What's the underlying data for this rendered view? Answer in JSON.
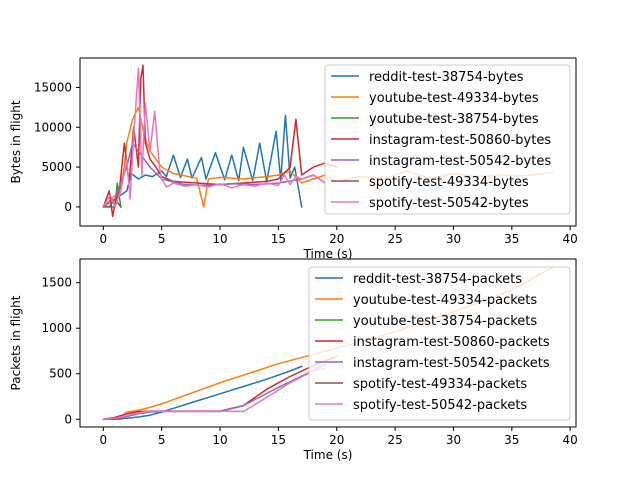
{
  "chart_data": [
    {
      "type": "line",
      "title": "",
      "xlabel": "Time (s)",
      "ylabel": "Bytes in flight",
      "xlim": [
        -2,
        40.5
      ],
      "ylim": [
        -2400,
        18700
      ],
      "xticks": [
        0,
        5,
        10,
        15,
        20,
        25,
        30,
        35,
        40
      ],
      "yticks": [
        0,
        5000,
        10000,
        15000
      ],
      "grid": false,
      "legend_position": "upper right",
      "series": [
        {
          "name": "reddit-test-38754-bytes",
          "color": "#1f77b4",
          "x": [
            0,
            2.0,
            2.4,
            3.0,
            3.6,
            4.2,
            5.0,
            5.4,
            6.0,
            6.6,
            7.2,
            7.6,
            8.4,
            8.8,
            9.6,
            10.4,
            11.0,
            11.6,
            12.0,
            12.8,
            13.4,
            14.0,
            14.8,
            15.2,
            15.6,
            16.0,
            16.4,
            17.0
          ],
          "y": [
            0,
            2000,
            4200,
            3500,
            4000,
            3800,
            4500,
            3800,
            6500,
            3700,
            6000,
            3600,
            6200,
            3500,
            6800,
            3400,
            6500,
            3300,
            7500,
            3300,
            8000,
            3200,
            9500,
            3400,
            11500,
            3600,
            5000,
            0
          ]
        },
        {
          "name": "youtube-test-49334-bytes",
          "color": "#ff7f0e",
          "x": [
            0,
            1.4,
            1.8,
            2.0,
            2.5,
            3.0,
            3.5,
            4.0,
            4.5,
            5.0,
            6.0,
            8.0,
            8.6,
            9.0,
            10.0,
            12.0,
            14.0,
            15.0,
            16.0,
            17.0,
            18.0,
            19.0,
            20.0,
            22.0,
            24.0,
            26.0,
            28.0,
            30.0,
            32.0,
            34.0,
            36.0,
            38.5
          ],
          "y": [
            0,
            2000,
            5000,
            8000,
            11000,
            12500,
            9000,
            7000,
            6000,
            5000,
            4200,
            3600,
            0,
            3500,
            3700,
            3500,
            3800,
            4000,
            4500,
            3000,
            3500,
            4000,
            3200,
            3800,
            3500,
            4500,
            3600,
            4200,
            3800,
            4000,
            3900,
            4300
          ]
        },
        {
          "name": "youtube-test-38754-bytes",
          "color": "#2ca02c",
          "x": [
            0,
            1.0,
            1.2,
            1.5
          ],
          "y": [
            0,
            0,
            3000,
            0
          ]
        },
        {
          "name": "instagram-test-50860-bytes",
          "color": "#d62728",
          "x": [
            0,
            0.5,
            0.8,
            1.0,
            1.4,
            1.8,
            2.2,
            2.6,
            3.0,
            3.2,
            3.4,
            3.6,
            4.0,
            4.5,
            5.0,
            6.0,
            8.0,
            10.0,
            12.0,
            14.0,
            15.0,
            16.0,
            16.5,
            17.0,
            18.0,
            19.0,
            20.0
          ],
          "y": [
            0,
            2000,
            -1200,
            500,
            2500,
            8000,
            3000,
            10000,
            5000,
            16000,
            17800,
            8000,
            6000,
            5000,
            3800,
            3200,
            3000,
            2800,
            3000,
            3200,
            3500,
            5000,
            11000,
            4000,
            5000,
            5500,
            5000
          ]
        },
        {
          "name": "instagram-test-50542-bytes",
          "color": "#9467bd",
          "x": [
            0,
            1.0,
            1.5,
            2.0,
            2.5,
            3.0,
            4.0,
            5.0,
            7.0,
            9.0,
            11.0,
            13.0,
            15.0,
            17.0,
            18.0,
            19.0
          ],
          "y": [
            0,
            1000,
            3000,
            5000,
            8000,
            7000,
            5000,
            3500,
            2800,
            2700,
            2900,
            2800,
            3000,
            3500,
            4000,
            3000
          ]
        },
        {
          "name": "spotify-test-49334-bytes",
          "color": "#8c564b",
          "x": [
            0,
            0.5,
            1.0,
            1.5
          ],
          "y": [
            0,
            0,
            1000,
            0
          ]
        },
        {
          "name": "spotify-test-50542-bytes",
          "color": "#e377c2",
          "x": [
            0,
            0.6,
            1.0,
            1.5,
            2.0,
            2.3,
            2.6,
            3.0,
            3.3,
            3.6,
            4.0,
            4.4,
            4.8,
            5.0,
            5.4,
            6.0,
            7.0,
            8.0,
            9.0,
            10.0,
            11.0,
            12.0,
            13.0,
            14.0,
            15.0,
            15.5,
            16.0,
            16.5,
            17.0,
            18.0,
            19.0
          ],
          "y": [
            0,
            1500,
            0,
            2000,
            6000,
            1000,
            9000,
            17400,
            4000,
            13000,
            7000,
            12000,
            5000,
            3500,
            2500,
            3000,
            2600,
            2800,
            2500,
            2900,
            2400,
            2800,
            2600,
            3000,
            2700,
            4000,
            2800,
            3800,
            3500,
            4000,
            3000
          ]
        }
      ]
    },
    {
      "type": "line",
      "title": "",
      "xlabel": "Time (s)",
      "ylabel": "Packets in flight",
      "xlim": [
        -2,
        40.5
      ],
      "ylim": [
        -85,
        1760
      ],
      "xticks": [
        0,
        5,
        10,
        15,
        20,
        25,
        30,
        35,
        40
      ],
      "yticks": [
        0,
        500,
        1000,
        1500
      ],
      "grid": false,
      "legend_position": "upper right",
      "series": [
        {
          "name": "reddit-test-38754-packets",
          "color": "#1f77b4",
          "x": [
            0,
            1.5,
            2.0,
            3.0,
            4.0,
            5.0,
            6.0,
            8.0,
            10.0,
            12.0,
            14.0,
            16.0,
            17.0
          ],
          "y": [
            0,
            5,
            10,
            25,
            45,
            80,
            120,
            200,
            280,
            360,
            440,
            530,
            580
          ]
        },
        {
          "name": "youtube-test-49334-packets",
          "color": "#ff7f0e",
          "x": [
            0,
            1.5,
            2.0,
            3.0,
            4.0,
            5.0,
            10.0,
            15.0,
            20.0,
            25.0,
            30.0,
            35.0,
            38.5
          ],
          "y": [
            0,
            20,
            80,
            100,
            130,
            170,
            400,
            610,
            780,
            960,
            1180,
            1420,
            1670
          ]
        },
        {
          "name": "youtube-test-38754-packets",
          "color": "#2ca02c",
          "x": [
            0,
            1.0,
            1.5
          ],
          "y": [
            0,
            2,
            4
          ]
        },
        {
          "name": "instagram-test-50860-packets",
          "color": "#d62728",
          "x": [
            0,
            1.0,
            2.0,
            3.0,
            4.0,
            5.0,
            10.0,
            12.0,
            14.0,
            16.0,
            18.0,
            20.0
          ],
          "y": [
            0,
            20,
            60,
            85,
            90,
            90,
            90,
            150,
            330,
            470,
            590,
            690
          ]
        },
        {
          "name": "instagram-test-50542-packets",
          "color": "#9467bd",
          "x": [
            0,
            1.0,
            2.0,
            3.0,
            4.0,
            5.0,
            10.0,
            12.0,
            15.0,
            19.0
          ],
          "y": [
            0,
            10,
            30,
            60,
            80,
            85,
            85,
            150,
            350,
            600
          ]
        },
        {
          "name": "spotify-test-49334-packets",
          "color": "#8c564b",
          "x": [
            0,
            0.5,
            1.0,
            1.5
          ],
          "y": [
            0,
            0,
            2,
            4
          ]
        },
        {
          "name": "spotify-test-50542-packets",
          "color": "#e377c2",
          "x": [
            0,
            1.0,
            2.0,
            3.0,
            4.0,
            5.0,
            8.0,
            10.0,
            12.0,
            14.0,
            16.0,
            18.0,
            19.0
          ],
          "y": [
            0,
            10,
            40,
            70,
            90,
            90,
            90,
            90,
            85,
            240,
            400,
            530,
            560
          ]
        }
      ]
    }
  ]
}
